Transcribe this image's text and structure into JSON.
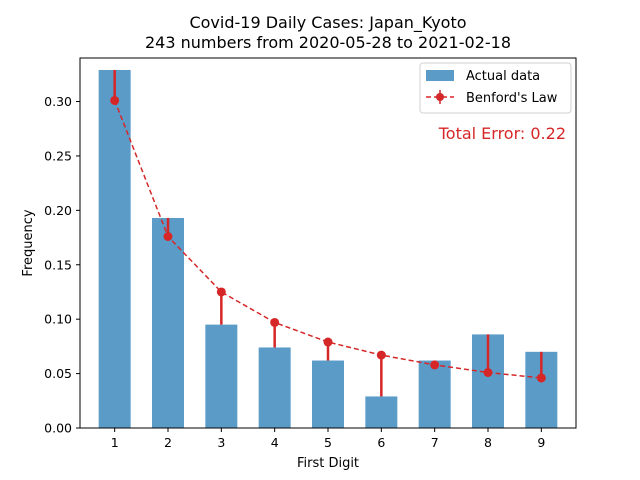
{
  "chart_data": {
    "type": "bar",
    "title": "Covid-19 Daily Cases: Japan_Kyoto",
    "subtitle": "243 numbers from 2020-05-28 to 2021-02-18",
    "xlabel": "First Digit",
    "ylabel": "Frequency",
    "categories": [
      "1",
      "2",
      "3",
      "4",
      "5",
      "6",
      "7",
      "8",
      "9"
    ],
    "xlim": [
      0.35,
      9.65
    ],
    "ylim": [
      0,
      0.34
    ],
    "yticks": [
      "0.00",
      "0.05",
      "0.10",
      "0.15",
      "0.20",
      "0.25",
      "0.30"
    ],
    "grid": false,
    "legend_position": "top-right",
    "series": [
      {
        "name": "Actual data",
        "type": "bar",
        "color": "#5b9bc8",
        "values": [
          0.329,
          0.193,
          0.095,
          0.074,
          0.062,
          0.029,
          0.062,
          0.086,
          0.07
        ]
      },
      {
        "name": "Benford's Law",
        "type": "line-errorbar",
        "color": "#d62728",
        "values": [
          0.301,
          0.176,
          0.125,
          0.097,
          0.079,
          0.067,
          0.058,
          0.051,
          0.046
        ]
      }
    ],
    "annotation": {
      "text": "Total Error: 0.22",
      "color": "#d62728",
      "position": "top-right"
    }
  }
}
